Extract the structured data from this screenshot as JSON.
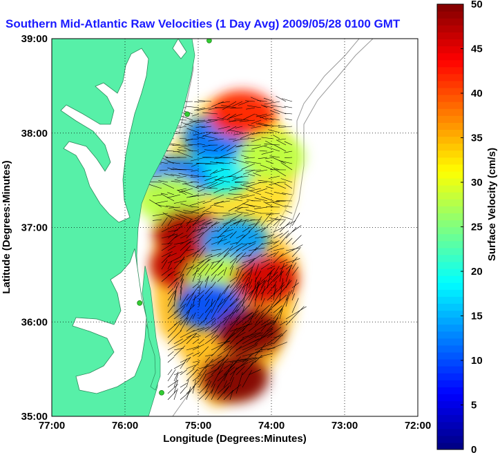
{
  "chart_data": {
    "type": "heatmap",
    "title": "Southern Mid-Atlantic Raw Velocities (1 Day Avg) 2009/05/28 0100 GMT",
    "xlabel": "Longitude (Degrees:Minutes)",
    "ylabel": "Latitude (Degrees:Minutes)",
    "xlim": [
      -77,
      -72
    ],
    "ylim": [
      35,
      39
    ],
    "x_ticks": [
      -77,
      -76,
      -75,
      -74,
      -73,
      -72
    ],
    "x_tick_labels": [
      "77:00",
      "76:00",
      "75:00",
      "74:00",
      "73:00",
      "72:00"
    ],
    "y_ticks": [
      35,
      36,
      37,
      38,
      39
    ],
    "y_tick_labels": [
      "35:00",
      "36:00",
      "37:00",
      "38:00",
      "39:00"
    ],
    "grid": true,
    "colorbar": {
      "label": "Surface Velocity (cm/s)",
      "range": [
        0,
        50
      ],
      "ticks": [
        0,
        5,
        10,
        15,
        20,
        25,
        30,
        35,
        40,
        45,
        50
      ],
      "tick_labels": [
        "0",
        "5",
        "10",
        "15",
        "20",
        "25",
        "30",
        "35",
        "40",
        "45",
        "50"
      ],
      "colormap": "jet"
    },
    "colors": {
      "land": "#57f0a8",
      "water": "#ffffff",
      "stations": "#33cc33",
      "vectors": "#000000",
      "bathymetry": "#999999"
    },
    "regions": [
      {
        "lon": -74.7,
        "lat": 37.6,
        "speed": 18
      },
      {
        "lon": -74.75,
        "lat": 37.95,
        "speed": 12
      },
      {
        "lon": -75.3,
        "lat": 37.5,
        "speed": 12
      },
      {
        "lon": -75.4,
        "lat": 37.3,
        "speed": 28
      },
      {
        "lon": -75.15,
        "lat": 36.95,
        "speed": 48
      },
      {
        "lon": -75.2,
        "lat": 36.6,
        "speed": 47
      },
      {
        "lon": -74.5,
        "lat": 36.85,
        "speed": 14
      },
      {
        "lon": -74.7,
        "lat": 36.45,
        "speed": 28
      },
      {
        "lon": -74.85,
        "lat": 36.17,
        "speed": 10
      },
      {
        "lon": -74.1,
        "lat": 36.45,
        "speed": 46
      },
      {
        "lon": -74.3,
        "lat": 35.9,
        "speed": 50
      },
      {
        "lon": -74.5,
        "lat": 35.4,
        "speed": 50
      },
      {
        "lon": -74.4,
        "lat": 38.2,
        "speed": 42
      },
      {
        "lon": -74.0,
        "lat": 37.75,
        "speed": 28
      }
    ],
    "stations": [
      {
        "lon": -74.85,
        "lat": 38.98
      },
      {
        "lon": -75.15,
        "lat": 38.2
      },
      {
        "lon": -75.8,
        "lat": 36.2
      },
      {
        "lon": -75.5,
        "lat": 35.25
      }
    ]
  }
}
